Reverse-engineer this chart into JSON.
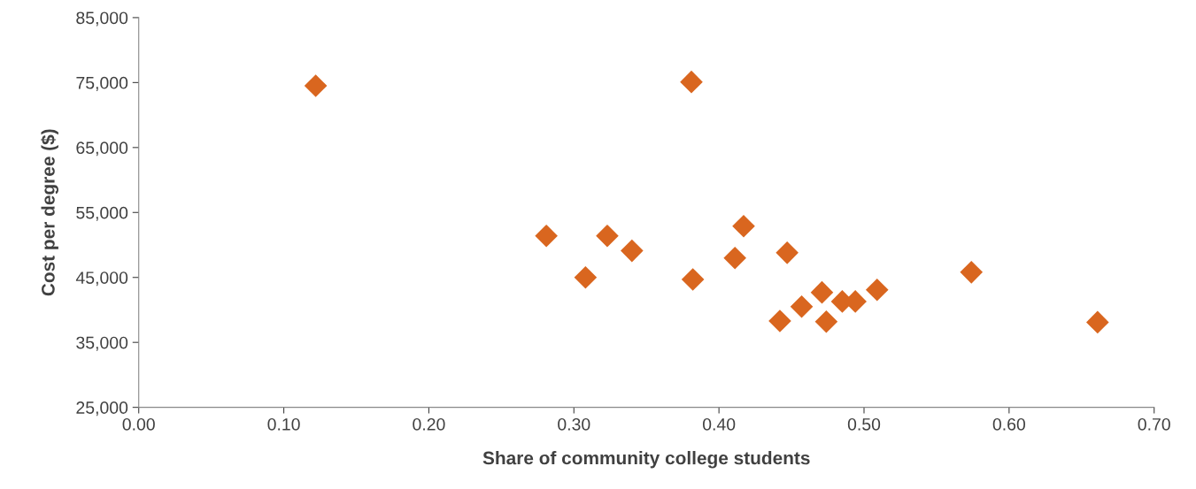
{
  "chart_data": {
    "type": "scatter",
    "xlabel": "Share of community college students",
    "ylabel": "Cost per degree ($)",
    "x": [
      0.122,
      0.381,
      0.281,
      0.308,
      0.323,
      0.34,
      0.382,
      0.417,
      0.411,
      0.447,
      0.442,
      0.457,
      0.471,
      0.474,
      0.485,
      0.494,
      0.509,
      0.574,
      0.661
    ],
    "series": [
      {
        "color": "#d9661f",
        "values": [
          74500,
          75100,
          51400,
          45000,
          51400,
          49100,
          44700,
          52900,
          48000,
          48800,
          38300,
          40500,
          42700,
          38200,
          41300,
          41300,
          43100,
          45800,
          38100
        ]
      }
    ],
    "marker": "diamond",
    "grid": false,
    "xlim": [
      0,
      0.7
    ],
    "ylim": [
      25000,
      85000
    ],
    "xticks": [
      {
        "value": 0,
        "label": "0.00"
      },
      {
        "value": 0.1,
        "label": "0.10"
      },
      {
        "value": 0.2,
        "label": "0.20"
      },
      {
        "value": 0.3,
        "label": "0.30"
      },
      {
        "value": 0.4,
        "label": "0.40"
      },
      {
        "value": 0.5,
        "label": "0.50"
      },
      {
        "value": 0.6,
        "label": "0.60"
      },
      {
        "value": 0.7,
        "label": "0.70"
      }
    ],
    "yticks": [
      {
        "value": 25000,
        "label": "25,000"
      },
      {
        "value": 35000,
        "label": "35,000"
      },
      {
        "value": 45000,
        "label": "45,000"
      },
      {
        "value": 55000,
        "label": "55,000"
      },
      {
        "value": 65000,
        "label": "65,000"
      },
      {
        "value": 75000,
        "label": "75,000"
      },
      {
        "value": 85000,
        "label": "85,000"
      }
    ]
  }
}
